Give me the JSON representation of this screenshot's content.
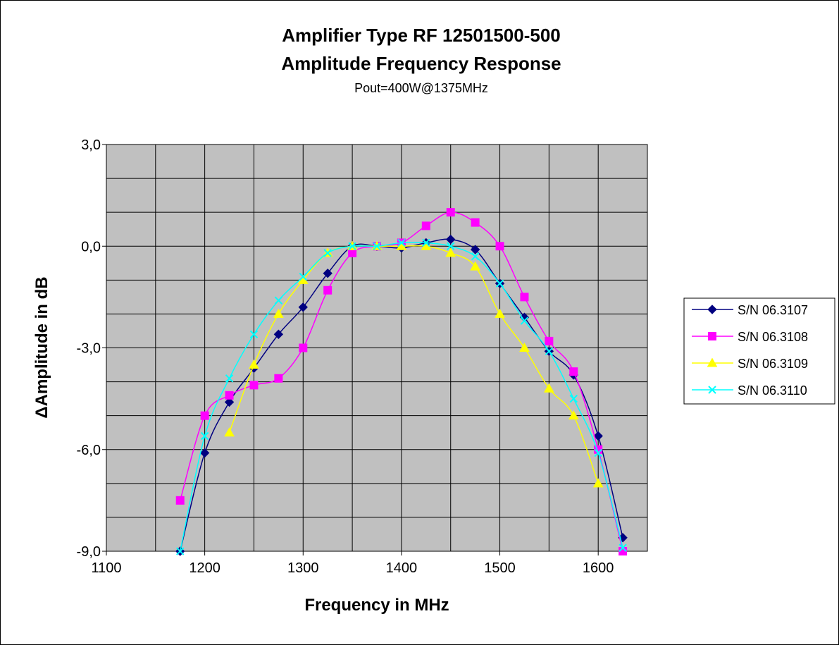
{
  "chart_data": {
    "type": "line",
    "title": "Amplifier Type RF 12501500-500",
    "title_line2": "Amplitude Frequency Response",
    "subtitle": "Pout=400W@1375MHz",
    "xlabel": "Frequency in MHz",
    "ylabel": "ΔAmplitude in dB",
    "xlim": [
      1100,
      1650
    ],
    "ylim": [
      -9,
      3
    ],
    "x_ticks": [
      1100,
      1200,
      1300,
      1400,
      1500,
      1600
    ],
    "x_ticks_labels": [
      "1100",
      "1200",
      "1300",
      "1400",
      "1500",
      "1600"
    ],
    "y_ticks": [
      3,
      0,
      -3,
      -6,
      -9
    ],
    "y_ticks_labels": [
      "3,0",
      "0,0",
      "-3,0",
      "-6,0",
      "-9,0"
    ],
    "grid": true,
    "plot_background": "#c0c0c0",
    "legend_position": "right",
    "series": [
      {
        "name": "S/N 06.3107",
        "color": "#000080",
        "marker": "diamond",
        "points": [
          [
            1175,
            -9.0
          ],
          [
            1200,
            -6.1
          ],
          [
            1225,
            -4.6
          ],
          [
            1250,
            -3.6
          ],
          [
            1275,
            -2.6
          ],
          [
            1300,
            -1.8
          ],
          [
            1325,
            -0.8
          ],
          [
            1350,
            0.0
          ],
          [
            1375,
            0.0
          ],
          [
            1400,
            -0.05
          ],
          [
            1425,
            0.1
          ],
          [
            1450,
            0.2
          ],
          [
            1475,
            -0.1
          ],
          [
            1500,
            -1.1
          ],
          [
            1525,
            -2.1
          ],
          [
            1550,
            -3.1
          ],
          [
            1575,
            -3.8
          ],
          [
            1600,
            -5.6
          ],
          [
            1625,
            -8.6
          ]
        ]
      },
      {
        "name": "S/N 06.3108",
        "color": "#ff00ff",
        "marker": "square",
        "points": [
          [
            1175,
            -7.5
          ],
          [
            1200,
            -5.0
          ],
          [
            1225,
            -4.4
          ],
          [
            1250,
            -4.1
          ],
          [
            1275,
            -3.9
          ],
          [
            1300,
            -3.0
          ],
          [
            1325,
            -1.3
          ],
          [
            1350,
            -0.2
          ],
          [
            1375,
            0.0
          ],
          [
            1400,
            0.1
          ],
          [
            1425,
            0.6
          ],
          [
            1450,
            1.0
          ],
          [
            1475,
            0.7
          ],
          [
            1500,
            0.0
          ],
          [
            1525,
            -1.5
          ],
          [
            1550,
            -2.8
          ],
          [
            1575,
            -3.7
          ],
          [
            1600,
            -6.0
          ],
          [
            1625,
            -9.0
          ]
        ]
      },
      {
        "name": "S/N 06.3109",
        "color": "#ffff00",
        "marker": "triangle",
        "points": [
          [
            1225,
            -5.5
          ],
          [
            1250,
            -3.5
          ],
          [
            1275,
            -2.0
          ],
          [
            1300,
            -1.0
          ],
          [
            1325,
            -0.2
          ],
          [
            1350,
            0.0
          ],
          [
            1375,
            0.0
          ],
          [
            1400,
            0.0
          ],
          [
            1425,
            0.0
          ],
          [
            1450,
            -0.2
          ],
          [
            1475,
            -0.6
          ],
          [
            1500,
            -2.0
          ],
          [
            1525,
            -3.0
          ],
          [
            1550,
            -4.2
          ],
          [
            1575,
            -5.0
          ],
          [
            1600,
            -7.0
          ]
        ]
      },
      {
        "name": "S/N 06.3110",
        "color": "#00ffff",
        "marker": "x",
        "points": [
          [
            1175,
            -9.0
          ],
          [
            1200,
            -5.6
          ],
          [
            1225,
            -3.9
          ],
          [
            1250,
            -2.6
          ],
          [
            1275,
            -1.6
          ],
          [
            1300,
            -0.9
          ],
          [
            1325,
            -0.2
          ],
          [
            1350,
            0.0
          ],
          [
            1375,
            0.0
          ],
          [
            1400,
            0.1
          ],
          [
            1425,
            0.1
          ],
          [
            1450,
            0.0
          ],
          [
            1475,
            -0.3
          ],
          [
            1500,
            -1.1
          ],
          [
            1525,
            -2.2
          ],
          [
            1550,
            -3.1
          ],
          [
            1575,
            -4.5
          ],
          [
            1600,
            -6.1
          ],
          [
            1625,
            -8.9
          ]
        ]
      }
    ]
  }
}
